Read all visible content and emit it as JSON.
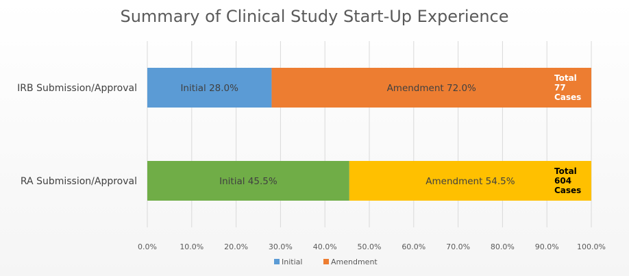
{
  "chart_data": {
    "type": "bar",
    "orientation": "horizontal",
    "stacked": true,
    "title": "Summary of Clinical Study Start-Up Experience",
    "categories": [
      "IRB Submission/Approval",
      "RA Submission/Approval"
    ],
    "series": [
      {
        "name": "Initial",
        "values": [
          28.0,
          45.5
        ]
      },
      {
        "name": "Amendment",
        "values": [
          72.0,
          54.5
        ]
      }
    ],
    "segment_labels": [
      [
        "Initial  28.0%",
        "Amendment 72.0%"
      ],
      [
        "Initial  45.5%",
        "Amendment 54.5%"
      ]
    ],
    "segment_colors": [
      [
        "#5b9bd5",
        "#ed7d31"
      ],
      [
        "#70ad47",
        "#ffc000"
      ]
    ],
    "total_labels": [
      [
        "Total",
        "77",
        "Cases"
      ],
      [
        "Total",
        "604",
        "Cases"
      ]
    ],
    "total_label_colors": [
      "#ffffff",
      "#000000"
    ],
    "x_ticks": [
      "0.0%",
      "10.0%",
      "20.0%",
      "30.0%",
      "40.0%",
      "50.0%",
      "60.0%",
      "70.0%",
      "80.0%",
      "90.0%",
      "100.0%"
    ],
    "xlim": [
      0,
      100
    ],
    "grid": true,
    "legend": {
      "position": "bottom",
      "entries": [
        {
          "name": "Initial",
          "color": "#5b9bd5"
        },
        {
          "name": "Amendment",
          "color": "#ed7d31"
        }
      ]
    }
  }
}
